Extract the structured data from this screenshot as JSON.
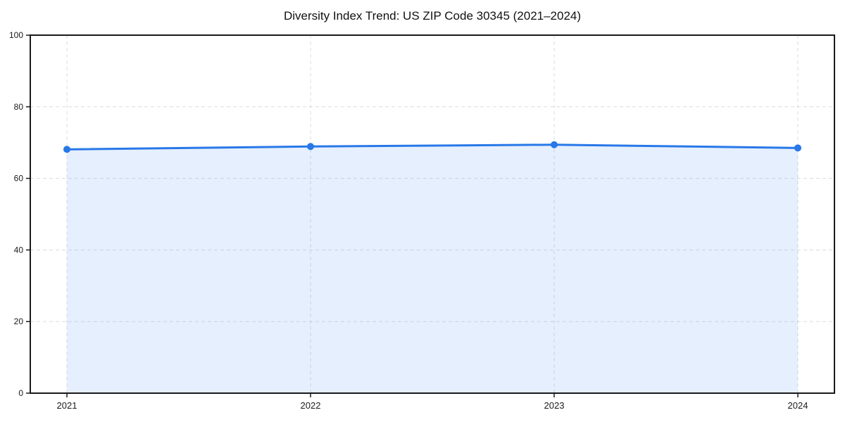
{
  "title": "Diversity Index Trend: US ZIP Code 30345 (2021–2024)",
  "colors": {
    "line": "#2878e8",
    "marker": "#2878e8",
    "fill": "rgba(43,120,235,0.12)",
    "grid": "#dcdcdc",
    "axis": "#1a1a1a",
    "tick_text": "#1a1a1a",
    "background": "#ffffff"
  },
  "chart_data": {
    "type": "area",
    "title": "Diversity Index Trend: US ZIP Code 30345 (2021–2024)",
    "categories": [
      "2021",
      "2022",
      "2023",
      "2024"
    ],
    "x": [
      2021,
      2022,
      2023,
      2024
    ],
    "values": [
      68.1,
      68.9,
      69.4,
      68.5
    ],
    "series_name": "Diversity Index",
    "xlabel": "",
    "ylabel": "",
    "ylim": [
      0,
      100
    ],
    "yticks": [
      0,
      20,
      40,
      60,
      80,
      100
    ],
    "grid": true,
    "grid_style": "dashed",
    "legend": null,
    "marker": "circle",
    "line_width": 3,
    "marker_radius": 5
  }
}
